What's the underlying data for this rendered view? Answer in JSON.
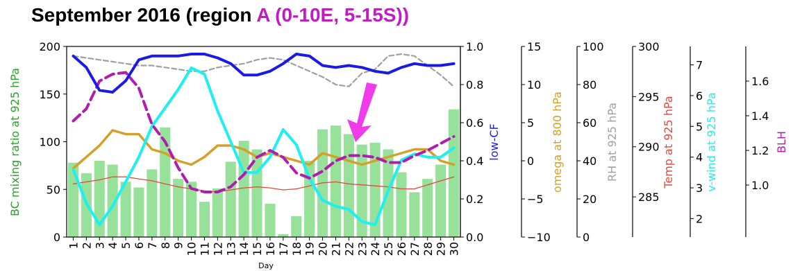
{
  "title": {
    "prefix": "September 2016 (region ",
    "region": "A (0-10E, 5-15S))"
  },
  "colors": {
    "bars": "#98e19a",
    "lowcf": "#1a1ae6",
    "omega": "#d4a02a",
    "rh": "#a0a0a0",
    "temp": "#e8463c",
    "vwind": "#1ef0f0",
    "blh": "#b01cb0",
    "arrow": "#f03ce8",
    "bc_label": "#2ca02c"
  },
  "chart_data": {
    "type": "bar",
    "xlabel": "Day",
    "x": [
      1,
      2,
      3,
      4,
      5,
      6,
      7,
      8,
      9,
      10,
      11,
      12,
      13,
      14,
      15,
      16,
      17,
      18,
      19,
      20,
      21,
      22,
      23,
      24,
      25,
      26,
      27,
      28,
      29,
      30
    ],
    "x_tick_labels": [
      "1",
      "2",
      "3",
      "4",
      "5",
      "6",
      "7",
      "8",
      "9",
      "10",
      "11",
      "12",
      "13",
      "14",
      "15",
      "16",
      "17",
      "18",
      "19",
      "20",
      "21",
      "22",
      "23",
      "24",
      "25",
      "26",
      "27",
      "28",
      "29",
      "30"
    ],
    "axes": [
      {
        "key": "bc",
        "label": "BC mixing ratio at 925 hPa",
        "range": [
          0,
          200
        ],
        "ticks": [
          0,
          50,
          100,
          150,
          200
        ],
        "tick_labels": [
          "0",
          "50",
          "100",
          "150",
          "200"
        ]
      },
      {
        "key": "lowcf",
        "label": "low-CF",
        "range": [
          0,
          1
        ],
        "ticks": [
          0,
          0.2,
          0.4,
          0.6,
          0.8,
          1.0
        ],
        "tick_labels": [
          "0.0",
          "0.2",
          "0.4",
          "0.6",
          "0.8",
          "1.0"
        ]
      },
      {
        "key": "omega",
        "label": "omega at 800 hPa",
        "range": [
          -10,
          15
        ],
        "ticks": [
          -10,
          -5,
          0,
          5,
          10,
          15
        ],
        "tick_labels": [
          "−10",
          "−5",
          "0",
          "5",
          "10",
          "15"
        ]
      },
      {
        "key": "rh",
        "label": "RH at 925 hPa",
        "range": [
          0,
          100
        ],
        "ticks": [
          0,
          20,
          40,
          60,
          80,
          100
        ],
        "tick_labels": [
          "0",
          "20",
          "40",
          "60",
          "80",
          "100"
        ]
      },
      {
        "key": "temp",
        "label": "Temp at 925 hPa",
        "range": [
          281,
          300
        ],
        "ticks": [
          285,
          290,
          295,
          300
        ],
        "tick_labels": [
          "285",
          "290",
          "295",
          "300"
        ]
      },
      {
        "key": "vwind",
        "label": "v-wind at 925 hPa",
        "range": [
          1.4,
          7.6
        ],
        "ticks": [
          2,
          3,
          4,
          5,
          6,
          7
        ],
        "tick_labels": [
          "2",
          "3",
          "4",
          "5",
          "6",
          "7"
        ]
      },
      {
        "key": "blh",
        "label": "BLH",
        "range": [
          0.7,
          1.8
        ],
        "ticks": [
          1.0,
          1.2,
          1.4,
          1.6
        ],
        "tick_labels": [
          "1.0",
          "1.2",
          "1.4",
          "1.6"
        ]
      }
    ],
    "series": [
      {
        "name": "BC mixing ratio at 925 hPa",
        "type": "bar",
        "axis": "bc",
        "values": [
          78,
          67,
          80,
          76,
          58,
          52,
          71,
          115,
          61,
          58,
          37,
          51,
          79,
          101,
          92,
          35,
          3,
          22,
          80,
          113,
          117,
          108,
          97,
          99,
          92,
          68,
          47,
          61,
          76,
          134
        ]
      },
      {
        "name": "low-CF",
        "type": "line",
        "axis": "lowcf",
        "values": [
          0.95,
          0.89,
          0.77,
          0.76,
          0.82,
          0.93,
          0.95,
          0.95,
          0.95,
          0.96,
          0.96,
          0.94,
          0.91,
          0.85,
          0.85,
          0.87,
          0.91,
          0.96,
          0.95,
          0.9,
          0.89,
          0.9,
          0.89,
          0.87,
          0.86,
          0.89,
          0.91,
          0.9,
          0.9,
          0.91
        ]
      },
      {
        "name": "omega at 800 hPa",
        "type": "line",
        "axis": "omega",
        "values": [
          -1,
          0.5,
          2,
          4,
          3.5,
          3.5,
          1.5,
          1,
          0,
          -0.5,
          0.5,
          2,
          2,
          1.5,
          0.5,
          1,
          0.5,
          0,
          -0.5,
          1,
          0.5,
          0,
          -0.5,
          0,
          0.5,
          1,
          1.5,
          1.5,
          0,
          -0.5
        ]
      },
      {
        "name": "RH at 925 hPa",
        "type": "line",
        "axis": "rh",
        "values": [
          95,
          94,
          93,
          92,
          91,
          90,
          90,
          89,
          88,
          87,
          87,
          89,
          90,
          91,
          93,
          94,
          93,
          90,
          87,
          84,
          80,
          79,
          86,
          88,
          95,
          96,
          95,
          90,
          85,
          79
        ]
      },
      {
        "name": "Temp at 925 hPa",
        "type": "line",
        "axis": "temp",
        "values": [
          286.3,
          286.5,
          286.7,
          287.0,
          287.0,
          286.8,
          286.6,
          286.3,
          286.0,
          285.8,
          285.6,
          285.5,
          285.7,
          285.9,
          286.0,
          285.9,
          285.7,
          285.8,
          286.1,
          286.4,
          286.5,
          286.3,
          286.2,
          286.1,
          286.0,
          285.8,
          285.8,
          286.2,
          286.6,
          287.0
        ]
      },
      {
        "name": "v-wind at 925 hPa",
        "type": "line",
        "axis": "vwind",
        "values": [
          3.6,
          2.5,
          1.8,
          2.4,
          3.2,
          4.0,
          5.0,
          5.6,
          6.2,
          6.9,
          6.7,
          5.5,
          4.5,
          3.5,
          3.5,
          4.0,
          4.9,
          4.4,
          3.3,
          2.6,
          2.4,
          2.3,
          1.9,
          1.8,
          2.9,
          3.9,
          4.1,
          4.0,
          4.0,
          4.3
        ]
      },
      {
        "name": "BLH",
        "type": "line",
        "axis": "blh",
        "dashed": true,
        "values": [
          1.37,
          1.44,
          1.6,
          1.64,
          1.65,
          1.56,
          1.35,
          1.25,
          1.1,
          0.98,
          0.96,
          0.96,
          0.99,
          1.06,
          1.16,
          1.2,
          1.16,
          1.07,
          1.04,
          1.08,
          1.14,
          1.17,
          1.17,
          1.16,
          1.13,
          1.13,
          1.17,
          1.2,
          1.24,
          1.28
        ]
      }
    ]
  }
}
